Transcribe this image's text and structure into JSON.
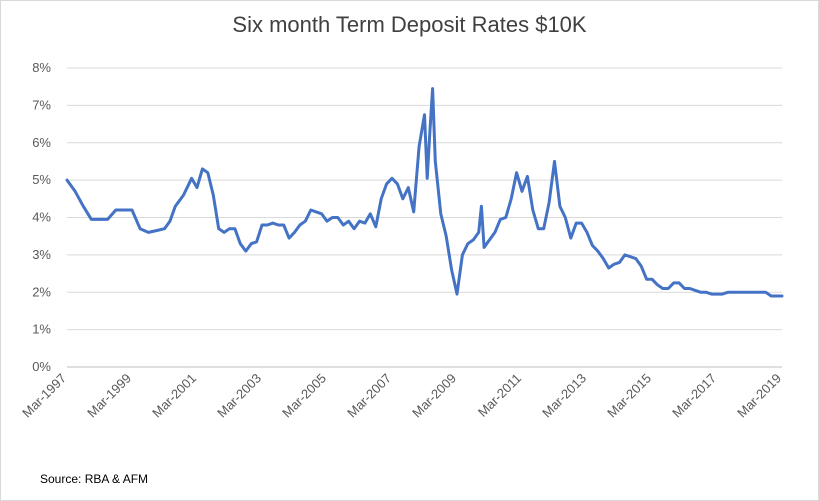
{
  "chart_data": {
    "type": "line",
    "title": "Six month Term Deposit Rates $10K",
    "xlabel": "",
    "ylabel": "",
    "ylim": [
      0,
      8
    ],
    "yticks": [
      "0%",
      "1%",
      "2%",
      "3%",
      "4%",
      "5%",
      "6%",
      "7%",
      "8%"
    ],
    "xticks": [
      "Mar-1997",
      "Mar-1999",
      "Mar-2001",
      "Mar-2003",
      "Mar-2005",
      "Mar-2007",
      "Mar-2009",
      "Mar-2011",
      "Mar-2013",
      "Mar-2015",
      "Mar-2017",
      "Mar-2019"
    ],
    "grid": true,
    "legend": "none",
    "series_color": "#4472c4",
    "series": [
      {
        "values": [
          [
            "Mar-1997",
            5.0
          ],
          [
            "Jun-1997",
            4.7
          ],
          [
            "Sep-1997",
            4.3
          ],
          [
            "Dec-1997",
            3.95
          ],
          [
            "Mar-1998",
            3.95
          ],
          [
            "Jun-1998",
            3.95
          ],
          [
            "Sep-1998",
            4.2
          ],
          [
            "Dec-1998",
            4.2
          ],
          [
            "Mar-1999",
            4.2
          ],
          [
            "Jun-1999",
            3.7
          ],
          [
            "Sep-1999",
            3.6
          ],
          [
            "Dec-1999",
            3.65
          ],
          [
            "Mar-2000",
            3.7
          ],
          [
            "May-2000",
            3.9
          ],
          [
            "Jul-2000",
            4.3
          ],
          [
            "Oct-2000",
            4.6
          ],
          [
            "Jan-2001",
            5.05
          ],
          [
            "Mar-2001",
            4.8
          ],
          [
            "May-2001",
            5.3
          ],
          [
            "Jul-2001",
            5.2
          ],
          [
            "Sep-2001",
            4.6
          ],
          [
            "Nov-2001",
            3.7
          ],
          [
            "Jan-2002",
            3.6
          ],
          [
            "Mar-2002",
            3.7
          ],
          [
            "May-2002",
            3.7
          ],
          [
            "Jul-2002",
            3.3
          ],
          [
            "Sep-2002",
            3.1
          ],
          [
            "Nov-2002",
            3.3
          ],
          [
            "Jan-2003",
            3.35
          ],
          [
            "Mar-2003",
            3.8
          ],
          [
            "May-2003",
            3.8
          ],
          [
            "Jul-2003",
            3.85
          ],
          [
            "Sep-2003",
            3.8
          ],
          [
            "Nov-2003",
            3.8
          ],
          [
            "Jan-2004",
            3.45
          ],
          [
            "Mar-2004",
            3.6
          ],
          [
            "May-2004",
            3.8
          ],
          [
            "Jul-2004",
            3.9
          ],
          [
            "Sep-2004",
            4.2
          ],
          [
            "Nov-2004",
            4.15
          ],
          [
            "Jan-2005",
            4.1
          ],
          [
            "Mar-2005",
            3.9
          ],
          [
            "May-2005",
            4.0
          ],
          [
            "Jul-2005",
            4.0
          ],
          [
            "Sep-2005",
            3.8
          ],
          [
            "Nov-2005",
            3.9
          ],
          [
            "Jan-2006",
            3.7
          ],
          [
            "Mar-2006",
            3.9
          ],
          [
            "May-2006",
            3.85
          ],
          [
            "Jul-2006",
            4.1
          ],
          [
            "Sep-2006",
            3.75
          ],
          [
            "Nov-2006",
            4.5
          ],
          [
            "Jan-2007",
            4.9
          ],
          [
            "Mar-2007",
            5.05
          ],
          [
            "May-2007",
            4.9
          ],
          [
            "Jul-2007",
            4.5
          ],
          [
            "Sep-2007",
            4.8
          ],
          [
            "Nov-2007",
            4.15
          ],
          [
            "Jan-2008",
            5.9
          ],
          [
            "Mar-2008",
            6.75
          ],
          [
            "Apr-2008",
            5.05
          ],
          [
            "May-2008",
            6.3
          ],
          [
            "Jun-2008",
            7.45
          ],
          [
            "Jul-2008",
            5.5
          ],
          [
            "Sep-2008",
            4.1
          ],
          [
            "Nov-2008",
            3.5
          ],
          [
            "Jan-2009",
            2.6
          ],
          [
            "Mar-2009",
            1.95
          ],
          [
            "May-2009",
            3.0
          ],
          [
            "Jul-2009",
            3.3
          ],
          [
            "Sep-2009",
            3.4
          ],
          [
            "Nov-2009",
            3.6
          ],
          [
            "Dec-2009",
            4.3
          ],
          [
            "Jan-2010",
            3.2
          ],
          [
            "Mar-2010",
            3.4
          ],
          [
            "May-2010",
            3.6
          ],
          [
            "Jul-2010",
            3.95
          ],
          [
            "Sep-2010",
            4.0
          ],
          [
            "Nov-2010",
            4.5
          ],
          [
            "Jan-2011",
            5.2
          ],
          [
            "Mar-2011",
            4.7
          ],
          [
            "May-2011",
            5.1
          ],
          [
            "Jul-2011",
            4.2
          ],
          [
            "Sep-2011",
            3.7
          ],
          [
            "Nov-2011",
            3.7
          ],
          [
            "Jan-2012",
            4.4
          ],
          [
            "Mar-2012",
            5.5
          ],
          [
            "May-2012",
            4.3
          ],
          [
            "Jul-2012",
            4.0
          ],
          [
            "Sep-2012",
            3.45
          ],
          [
            "Nov-2012",
            3.85
          ],
          [
            "Jan-2013",
            3.85
          ],
          [
            "Mar-2013",
            3.6
          ],
          [
            "May-2013",
            3.25
          ],
          [
            "Jul-2013",
            3.1
          ],
          [
            "Sep-2013",
            2.9
          ],
          [
            "Nov-2013",
            2.65
          ],
          [
            "Jan-2014",
            2.75
          ],
          [
            "Mar-2014",
            2.8
          ],
          [
            "May-2014",
            3.0
          ],
          [
            "Jul-2014",
            2.95
          ],
          [
            "Sep-2014",
            2.9
          ],
          [
            "Nov-2014",
            2.7
          ],
          [
            "Jan-2015",
            2.35
          ],
          [
            "Mar-2015",
            2.35
          ],
          [
            "May-2015",
            2.2
          ],
          [
            "Jul-2015",
            2.1
          ],
          [
            "Sep-2015",
            2.1
          ],
          [
            "Nov-2015",
            2.25
          ],
          [
            "Jan-2016",
            2.25
          ],
          [
            "Mar-2016",
            2.1
          ],
          [
            "May-2016",
            2.1
          ],
          [
            "Jul-2016",
            2.05
          ],
          [
            "Sep-2016",
            2.0
          ],
          [
            "Nov-2016",
            2.0
          ],
          [
            "Jan-2017",
            1.95
          ],
          [
            "Mar-2017",
            1.95
          ],
          [
            "May-2017",
            1.95
          ],
          [
            "Jul-2017",
            2.0
          ],
          [
            "Sep-2017",
            2.0
          ],
          [
            "Nov-2017",
            2.0
          ],
          [
            "Jan-2018",
            2.0
          ],
          [
            "Mar-2018",
            2.0
          ],
          [
            "May-2018",
            2.0
          ],
          [
            "Jul-2018",
            2.0
          ],
          [
            "Sep-2018",
            2.0
          ],
          [
            "Nov-2018",
            1.9
          ],
          [
            "Jan-2019",
            1.9
          ],
          [
            "Mar-2019",
            1.9
          ]
        ]
      }
    ]
  },
  "footer": {
    "source": "Source: RBA & AFM"
  }
}
